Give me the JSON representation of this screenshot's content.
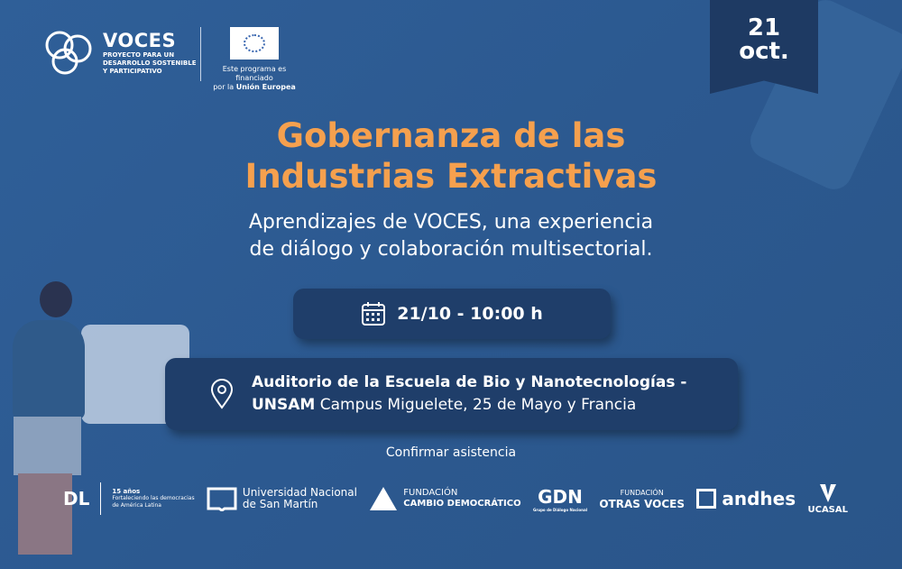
{
  "header": {
    "voces": {
      "name": "VOCES",
      "tagline": [
        "PROYECTO PARA UN",
        "DESARROLLO SOSTENIBLE",
        "Y PARTICIPATIVO"
      ]
    },
    "eu": {
      "line1": "Este programa es financiado",
      "line2_prefix": "por la ",
      "line2_bold": "Unión Europea"
    }
  },
  "date_badge": {
    "day": "21",
    "month": "oct."
  },
  "event": {
    "title_line1": "Gobernanza de las",
    "title_line2": "Industrias Extractivas",
    "subtitle_line1": "Aprendizajes de VOCES, una experiencia",
    "subtitle_line2": "de diálogo y colaboración multisectorial.",
    "datetime": "21/10 - 10:00 h",
    "location_line1": "Auditorio de la Escuela de Bio y Nanotecnologías -",
    "location_bold": "UNSAM",
    "location_rest": " Campus Miguelete, 25 de Mayo y Francia",
    "confirm": "Confirmar asistencia"
  },
  "colors": {
    "background": "#2d5a91",
    "title": "#f5a04e",
    "pill": "#1f3e6a",
    "badge": "#1e3a63"
  },
  "icons": {
    "date": "calendar-icon",
    "location": "map-pin-icon"
  },
  "partners": [
    {
      "name": "DL",
      "l1": "15 años",
      "l2": "Fortaleciendo las democracias",
      "l3": "de América Latina"
    },
    {
      "name": "Universidad Nacional",
      "l2": "de San Martín"
    },
    {
      "name": "FUNDACIÓN",
      "l2": "CAMBIO DEMOCRÁTICO"
    },
    {
      "name": "GDN",
      "l2": "Grupo de Diálogo Nacional"
    },
    {
      "name": "FUNDACIÓN",
      "l2": "OTRAS VOCES"
    },
    {
      "name": "andhes"
    },
    {
      "name": "UCASAL"
    }
  ]
}
